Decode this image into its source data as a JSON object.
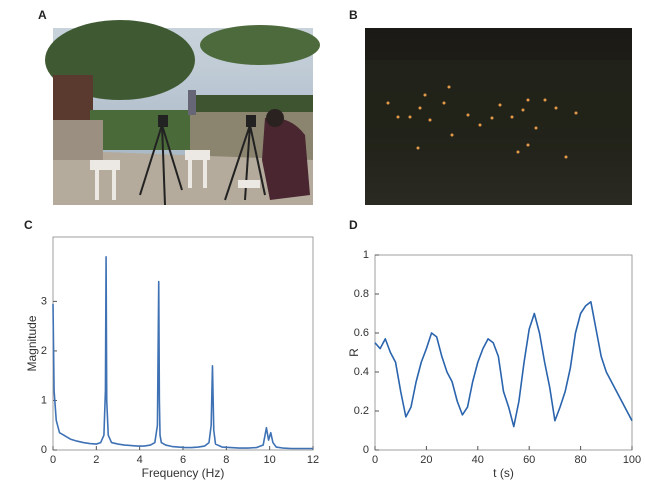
{
  "panel_labels": [
    "A",
    "B",
    "C",
    "D"
  ],
  "chart_data": [
    {
      "type": "line",
      "xlabel": "Frequency (Hz)",
      "ylabel": "Magnitude",
      "x": [
        0,
        0.05,
        0.15,
        0.3,
        0.5,
        0.8,
        1.1,
        1.4,
        1.7,
        2.0,
        2.2,
        2.35,
        2.42,
        2.45,
        2.48,
        2.55,
        2.7,
        3.0,
        3.3,
        3.6,
        3.9,
        4.2,
        4.5,
        4.7,
        4.82,
        4.88,
        4.91,
        4.94,
        5.0,
        5.2,
        5.5,
        5.8,
        6.1,
        6.4,
        6.7,
        7.0,
        7.2,
        7.3,
        7.36,
        7.42,
        7.5,
        7.8,
        8.2,
        8.6,
        9.0,
        9.4,
        9.7,
        9.85,
        9.95,
        10.05,
        10.15,
        10.3,
        10.6,
        11.0,
        11.4,
        11.8,
        12
      ],
      "series": [
        {
          "color": "#3f72b5",
          "values": [
            2.95,
            1.2,
            0.6,
            0.35,
            0.3,
            0.22,
            0.18,
            0.15,
            0.13,
            0.12,
            0.15,
            0.3,
            1.2,
            3.9,
            1.0,
            0.3,
            0.15,
            0.12,
            0.1,
            0.09,
            0.08,
            0.08,
            0.1,
            0.15,
            0.5,
            3.4,
            1.0,
            0.3,
            0.15,
            0.1,
            0.07,
            0.06,
            0.05,
            0.05,
            0.06,
            0.08,
            0.15,
            0.5,
            1.7,
            0.4,
            0.12,
            0.06,
            0.05,
            0.04,
            0.04,
            0.05,
            0.1,
            0.45,
            0.2,
            0.35,
            0.15,
            0.06,
            0.04,
            0.03,
            0.03,
            0.03,
            0.03
          ]
        }
      ],
      "xlim": [
        0,
        12
      ],
      "ylim": [
        0,
        4.3
      ],
      "xticks": [
        0,
        2,
        4,
        6,
        8,
        10,
        12
      ],
      "yticks": [
        0,
        1,
        2,
        3
      ]
    },
    {
      "type": "line",
      "xlabel": "t (s)",
      "ylabel": "R",
      "x": [
        0,
        2,
        4,
        6,
        8,
        10,
        12,
        14,
        16,
        18,
        20,
        22,
        24,
        26,
        28,
        30,
        32,
        34,
        36,
        38,
        40,
        42,
        44,
        46,
        48,
        50,
        52,
        54,
        56,
        58,
        60,
        62,
        64,
        66,
        68,
        70,
        72,
        74,
        76,
        78,
        80,
        82,
        84,
        86,
        88,
        90,
        92,
        94,
        96,
        98,
        100
      ],
      "series": [
        {
          "color": "#2a64ad",
          "values": [
            0.55,
            0.52,
            0.57,
            0.5,
            0.45,
            0.3,
            0.17,
            0.22,
            0.35,
            0.45,
            0.52,
            0.6,
            0.58,
            0.48,
            0.4,
            0.35,
            0.25,
            0.18,
            0.22,
            0.35,
            0.45,
            0.52,
            0.57,
            0.55,
            0.48,
            0.3,
            0.22,
            0.12,
            0.25,
            0.45,
            0.62,
            0.7,
            0.6,
            0.45,
            0.32,
            0.15,
            0.22,
            0.3,
            0.42,
            0.6,
            0.7,
            0.74,
            0.76,
            0.62,
            0.48,
            0.4,
            0.35,
            0.3,
            0.25,
            0.2,
            0.15
          ]
        }
      ],
      "xlim": [
        0,
        100
      ],
      "ylim": [
        0,
        1
      ],
      "xticks": [
        0,
        20,
        40,
        60,
        80,
        100
      ],
      "yticks": [
        0,
        0.2,
        0.4,
        0.6,
        0.8,
        1
      ]
    }
  ]
}
